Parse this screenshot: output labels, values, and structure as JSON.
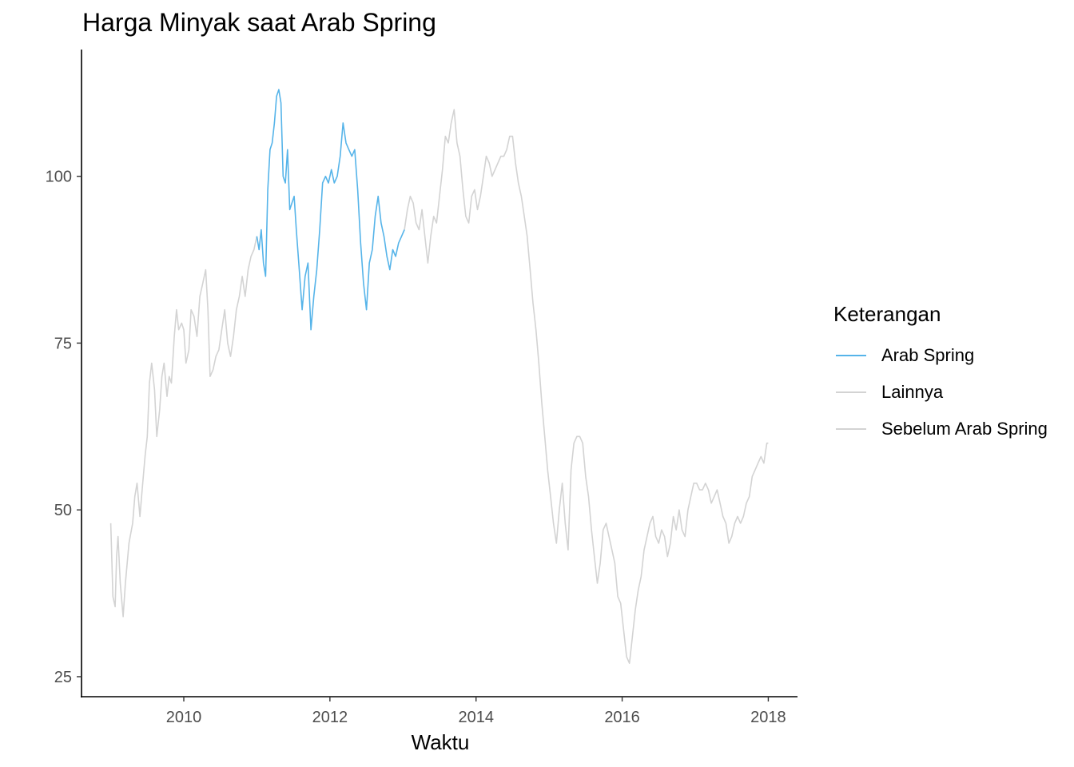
{
  "chart_data": {
    "type": "line",
    "title": "Harga Minyak saat Arab Spring",
    "xlabel": "Waktu",
    "ylabel": "",
    "xlim": [
      2008.6,
      2018.4
    ],
    "ylim": [
      22,
      119
    ],
    "x_ticks": [
      2010,
      2012,
      2014,
      2016,
      2018
    ],
    "y_ticks": [
      25,
      50,
      75,
      100
    ],
    "x_tick_labels": [
      "2010",
      "2012",
      "2014",
      "2016",
      "2018"
    ],
    "y_tick_labels": [
      "25",
      "50",
      "75",
      "100"
    ],
    "grid": false,
    "legend_position": "right",
    "legend_title": "Keterangan",
    "legend": [
      {
        "label": "Arab Spring",
        "color": "#56B4E9"
      },
      {
        "label": "Lainnya",
        "color": "#d3d3d3"
      },
      {
        "label": "Sebelum Arab Spring",
        "color": "#d3d3d3"
      }
    ],
    "series": [
      {
        "name": "Sebelum Arab Spring",
        "color": "#d3d3d3",
        "points": [
          [
            2009.0,
            48
          ],
          [
            2009.03,
            37
          ],
          [
            2009.06,
            35.5
          ],
          [
            2009.08,
            43
          ],
          [
            2009.1,
            46
          ],
          [
            2009.13,
            39
          ],
          [
            2009.17,
            34
          ],
          [
            2009.2,
            39
          ],
          [
            2009.25,
            45
          ],
          [
            2009.3,
            48
          ],
          [
            2009.33,
            52
          ],
          [
            2009.36,
            54
          ],
          [
            2009.4,
            49
          ],
          [
            2009.43,
            53
          ],
          [
            2009.47,
            58
          ],
          [
            2009.5,
            61
          ],
          [
            2009.53,
            69
          ],
          [
            2009.56,
            72
          ],
          [
            2009.6,
            68
          ],
          [
            2009.63,
            61
          ],
          [
            2009.67,
            65
          ],
          [
            2009.7,
            70
          ],
          [
            2009.73,
            72
          ],
          [
            2009.77,
            67
          ],
          [
            2009.8,
            70
          ],
          [
            2009.83,
            69
          ],
          [
            2009.87,
            76
          ],
          [
            2009.9,
            80
          ],
          [
            2009.93,
            77
          ],
          [
            2009.97,
            78
          ],
          [
            2010.0,
            77
          ],
          [
            2010.03,
            72
          ],
          [
            2010.07,
            74
          ],
          [
            2010.1,
            80
          ],
          [
            2010.14,
            79
          ],
          [
            2010.18,
            76
          ],
          [
            2010.22,
            82
          ],
          [
            2010.26,
            84
          ],
          [
            2010.3,
            86
          ],
          [
            2010.33,
            80
          ],
          [
            2010.36,
            70
          ],
          [
            2010.4,
            71
          ],
          [
            2010.44,
            73
          ],
          [
            2010.48,
            74
          ],
          [
            2010.52,
            77
          ],
          [
            2010.56,
            80
          ],
          [
            2010.6,
            75
          ],
          [
            2010.64,
            73
          ],
          [
            2010.68,
            76
          ],
          [
            2010.72,
            80
          ],
          [
            2010.76,
            82
          ],
          [
            2010.8,
            85
          ],
          [
            2010.84,
            82
          ],
          [
            2010.88,
            86
          ],
          [
            2010.92,
            88
          ],
          [
            2010.96,
            89
          ],
          [
            2011.0,
            91
          ]
        ]
      },
      {
        "name": "Arab Spring",
        "color": "#56B4E9",
        "points": [
          [
            2011.0,
            91
          ],
          [
            2011.03,
            89
          ],
          [
            2011.06,
            92
          ],
          [
            2011.09,
            87
          ],
          [
            2011.12,
            85
          ],
          [
            2011.15,
            98
          ],
          [
            2011.18,
            104
          ],
          [
            2011.21,
            105
          ],
          [
            2011.24,
            108
          ],
          [
            2011.27,
            112
          ],
          [
            2011.3,
            113
          ],
          [
            2011.33,
            111
          ],
          [
            2011.36,
            100
          ],
          [
            2011.39,
            99
          ],
          [
            2011.42,
            104
          ],
          [
            2011.45,
            95
          ],
          [
            2011.48,
            96
          ],
          [
            2011.51,
            97
          ],
          [
            2011.54,
            92
          ],
          [
            2011.58,
            86
          ],
          [
            2011.62,
            80
          ],
          [
            2011.66,
            85
          ],
          [
            2011.7,
            87
          ],
          [
            2011.74,
            77
          ],
          [
            2011.78,
            82
          ],
          [
            2011.82,
            86
          ],
          [
            2011.86,
            92
          ],
          [
            2011.9,
            99
          ],
          [
            2011.94,
            100
          ],
          [
            2011.98,
            99
          ],
          [
            2012.02,
            101
          ],
          [
            2012.06,
            99
          ],
          [
            2012.1,
            100
          ],
          [
            2012.14,
            103
          ],
          [
            2012.18,
            108
          ],
          [
            2012.22,
            105
          ],
          [
            2012.26,
            104
          ],
          [
            2012.3,
            103
          ],
          [
            2012.34,
            104
          ],
          [
            2012.38,
            98
          ],
          [
            2012.42,
            90
          ],
          [
            2012.46,
            84
          ],
          [
            2012.5,
            80
          ],
          [
            2012.54,
            87
          ],
          [
            2012.58,
            89
          ],
          [
            2012.62,
            94
          ],
          [
            2012.66,
            97
          ],
          [
            2012.7,
            93
          ],
          [
            2012.74,
            91
          ],
          [
            2012.78,
            88
          ],
          [
            2012.82,
            86
          ],
          [
            2012.86,
            89
          ],
          [
            2012.9,
            88
          ],
          [
            2012.94,
            90
          ],
          [
            2012.98,
            91
          ],
          [
            2013.02,
            92
          ]
        ]
      },
      {
        "name": "Lainnya",
        "color": "#d3d3d3",
        "points": [
          [
            2013.02,
            92
          ],
          [
            2013.06,
            95
          ],
          [
            2013.1,
            97
          ],
          [
            2013.14,
            96
          ],
          [
            2013.18,
            93
          ],
          [
            2013.22,
            92
          ],
          [
            2013.26,
            95
          ],
          [
            2013.3,
            91
          ],
          [
            2013.34,
            87
          ],
          [
            2013.38,
            91
          ],
          [
            2013.42,
            94
          ],
          [
            2013.46,
            93
          ],
          [
            2013.5,
            97
          ],
          [
            2013.54,
            101
          ],
          [
            2013.58,
            106
          ],
          [
            2013.62,
            105
          ],
          [
            2013.66,
            108
          ],
          [
            2013.7,
            110
          ],
          [
            2013.74,
            105
          ],
          [
            2013.78,
            103
          ],
          [
            2013.82,
            98
          ],
          [
            2013.86,
            94
          ],
          [
            2013.9,
            93
          ],
          [
            2013.94,
            97
          ],
          [
            2013.98,
            98
          ],
          [
            2014.02,
            95
          ],
          [
            2014.06,
            97
          ],
          [
            2014.1,
            100
          ],
          [
            2014.14,
            103
          ],
          [
            2014.18,
            102
          ],
          [
            2014.22,
            100
          ],
          [
            2014.26,
            101
          ],
          [
            2014.3,
            102
          ],
          [
            2014.34,
            103
          ],
          [
            2014.38,
            103
          ],
          [
            2014.42,
            104
          ],
          [
            2014.46,
            106
          ],
          [
            2014.5,
            106
          ],
          [
            2014.54,
            102
          ],
          [
            2014.58,
            99
          ],
          [
            2014.62,
            97
          ],
          [
            2014.66,
            94
          ],
          [
            2014.7,
            91
          ],
          [
            2014.74,
            86
          ],
          [
            2014.78,
            81
          ],
          [
            2014.82,
            77
          ],
          [
            2014.86,
            72
          ],
          [
            2014.9,
            66
          ],
          [
            2014.94,
            61
          ],
          [
            2014.98,
            56
          ],
          [
            2015.02,
            52
          ],
          [
            2015.06,
            48
          ],
          [
            2015.1,
            45
          ],
          [
            2015.14,
            50
          ],
          [
            2015.18,
            54
          ],
          [
            2015.22,
            48
          ],
          [
            2015.26,
            44
          ],
          [
            2015.3,
            56
          ],
          [
            2015.34,
            60
          ],
          [
            2015.38,
            61
          ],
          [
            2015.42,
            61
          ],
          [
            2015.46,
            60
          ],
          [
            2015.5,
            55
          ],
          [
            2015.54,
            52
          ],
          [
            2015.58,
            47
          ],
          [
            2015.62,
            43
          ],
          [
            2015.66,
            39
          ],
          [
            2015.7,
            42
          ],
          [
            2015.74,
            47
          ],
          [
            2015.78,
            48
          ],
          [
            2015.82,
            46
          ],
          [
            2015.86,
            44
          ],
          [
            2015.9,
            42
          ],
          [
            2015.94,
            37
          ],
          [
            2015.98,
            36
          ],
          [
            2016.02,
            32
          ],
          [
            2016.06,
            28
          ],
          [
            2016.1,
            27
          ],
          [
            2016.14,
            31
          ],
          [
            2016.18,
            35
          ],
          [
            2016.22,
            38
          ],
          [
            2016.26,
            40
          ],
          [
            2016.3,
            44
          ],
          [
            2016.34,
            46
          ],
          [
            2016.38,
            48
          ],
          [
            2016.42,
            49
          ],
          [
            2016.46,
            46
          ],
          [
            2016.5,
            45
          ],
          [
            2016.54,
            47
          ],
          [
            2016.58,
            46
          ],
          [
            2016.62,
            43
          ],
          [
            2016.66,
            45
          ],
          [
            2016.7,
            49
          ],
          [
            2016.74,
            47
          ],
          [
            2016.78,
            50
          ],
          [
            2016.82,
            47
          ],
          [
            2016.86,
            46
          ],
          [
            2016.9,
            50
          ],
          [
            2016.94,
            52
          ],
          [
            2016.98,
            54
          ],
          [
            2017.02,
            54
          ],
          [
            2017.06,
            53
          ],
          [
            2017.1,
            53
          ],
          [
            2017.14,
            54
          ],
          [
            2017.18,
            53
          ],
          [
            2017.22,
            51
          ],
          [
            2017.26,
            52
          ],
          [
            2017.3,
            53
          ],
          [
            2017.34,
            51
          ],
          [
            2017.38,
            49
          ],
          [
            2017.42,
            48
          ],
          [
            2017.46,
            45
          ],
          [
            2017.5,
            46
          ],
          [
            2017.54,
            48
          ],
          [
            2017.58,
            49
          ],
          [
            2017.62,
            48
          ],
          [
            2017.66,
            49
          ],
          [
            2017.7,
            51
          ],
          [
            2017.74,
            52
          ],
          [
            2017.78,
            55
          ],
          [
            2017.82,
            56
          ],
          [
            2017.86,
            57
          ],
          [
            2017.9,
            58
          ],
          [
            2017.94,
            57
          ],
          [
            2017.98,
            60
          ],
          [
            2018.0,
            60
          ]
        ]
      }
    ]
  }
}
